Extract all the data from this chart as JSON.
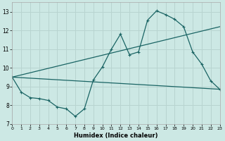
{
  "xlabel": "Humidex (Indice chaleur)",
  "bg_color": "#cce8e4",
  "grid_color": "#b8d4d0",
  "line_color": "#1a6464",
  "xlim": [
    0,
    23
  ],
  "ylim": [
    7,
    13.5
  ],
  "xticks": [
    0,
    1,
    2,
    3,
    4,
    5,
    6,
    7,
    8,
    9,
    10,
    11,
    12,
    13,
    14,
    15,
    16,
    17,
    18,
    19,
    20,
    21,
    22,
    23
  ],
  "yticks": [
    7,
    8,
    9,
    10,
    11,
    12,
    13
  ],
  "series1_x": [
    0,
    1,
    2,
    3,
    4,
    5,
    6,
    7,
    8,
    9,
    10,
    11,
    12,
    13,
    14,
    15,
    16,
    17,
    18,
    19,
    20,
    21,
    22,
    23
  ],
  "series1_y": [
    9.5,
    8.7,
    8.4,
    8.35,
    8.25,
    7.9,
    7.8,
    7.4,
    7.8,
    9.35,
    10.05,
    11.0,
    11.8,
    10.7,
    10.85,
    12.55,
    13.05,
    12.85,
    12.6,
    12.2,
    10.85,
    10.2,
    9.3,
    8.85
  ],
  "series2_x": [
    0,
    23
  ],
  "series2_y": [
    9.5,
    12.2
  ],
  "series3_x": [
    0,
    23
  ],
  "series3_y": [
    9.5,
    8.85
  ]
}
